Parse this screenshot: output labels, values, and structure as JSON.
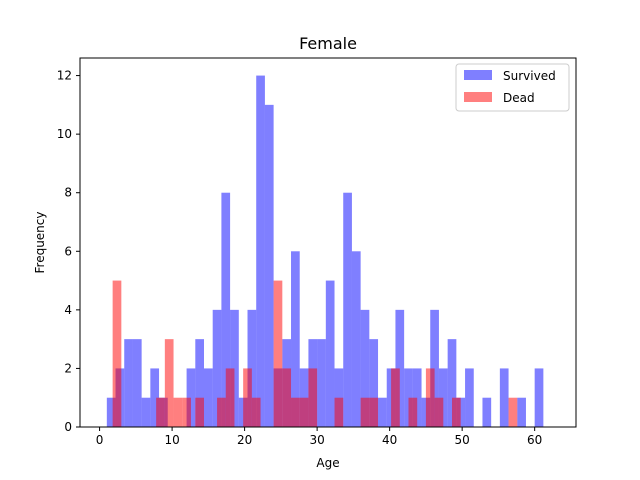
{
  "chart_data": {
    "type": "bar",
    "title": "Female",
    "xlabel": "Age",
    "ylabel": "Frequency",
    "xlim": [
      -2.7,
      65.7
    ],
    "ylim": [
      0,
      12.6
    ],
    "x_ticks": [
      0,
      10,
      20,
      30,
      40,
      50,
      60
    ],
    "y_ticks": [
      0,
      2,
      4,
      6,
      8,
      10,
      12
    ],
    "bin_width": 1.2,
    "legend_position": "top-right",
    "series": [
      {
        "name": "Survived",
        "color": "#0000ff",
        "bins": [
          {
            "x": 1.0,
            "value": 1
          },
          {
            "x": 2.2,
            "value": 2
          },
          {
            "x": 3.4,
            "value": 3
          },
          {
            "x": 4.6,
            "value": 3
          },
          {
            "x": 5.8,
            "value": 1
          },
          {
            "x": 7.0,
            "value": 2
          },
          {
            "x": 8.2,
            "value": 1
          },
          {
            "x": 12.0,
            "value": 2
          },
          {
            "x": 13.2,
            "value": 3
          },
          {
            "x": 14.4,
            "value": 2
          },
          {
            "x": 15.6,
            "value": 4
          },
          {
            "x": 16.8,
            "value": 8
          },
          {
            "x": 18.0,
            "value": 4
          },
          {
            "x": 19.2,
            "value": 1
          },
          {
            "x": 20.4,
            "value": 4
          },
          {
            "x": 21.6,
            "value": 12
          },
          {
            "x": 22.8,
            "value": 11
          },
          {
            "x": 24.0,
            "value": 2
          },
          {
            "x": 25.2,
            "value": 3
          },
          {
            "x": 26.4,
            "value": 6
          },
          {
            "x": 27.6,
            "value": 2
          },
          {
            "x": 28.8,
            "value": 3
          },
          {
            "x": 30.0,
            "value": 3
          },
          {
            "x": 31.2,
            "value": 5
          },
          {
            "x": 32.4,
            "value": 2
          },
          {
            "x": 33.6,
            "value": 8
          },
          {
            "x": 34.8,
            "value": 6
          },
          {
            "x": 36.0,
            "value": 4
          },
          {
            "x": 37.2,
            "value": 3
          },
          {
            "x": 38.4,
            "value": 1
          },
          {
            "x": 39.6,
            "value": 2
          },
          {
            "x": 40.8,
            "value": 4
          },
          {
            "x": 42.0,
            "value": 2
          },
          {
            "x": 43.2,
            "value": 2
          },
          {
            "x": 44.4,
            "value": 1
          },
          {
            "x": 45.6,
            "value": 4
          },
          {
            "x": 46.8,
            "value": 2
          },
          {
            "x": 48.0,
            "value": 3
          },
          {
            "x": 49.2,
            "value": 1
          },
          {
            "x": 50.4,
            "value": 2
          },
          {
            "x": 52.8,
            "value": 1
          },
          {
            "x": 55.2,
            "value": 2
          },
          {
            "x": 57.6,
            "value": 1
          },
          {
            "x": 60.0,
            "value": 2
          }
        ]
      },
      {
        "name": "Dead",
        "color": "#ff0000",
        "bins": [
          {
            "x": 1.8,
            "value": 5
          },
          {
            "x": 7.8,
            "value": 1
          },
          {
            "x": 9.0,
            "value": 3
          },
          {
            "x": 10.2,
            "value": 1
          },
          {
            "x": 11.4,
            "value": 1
          },
          {
            "x": 13.2,
            "value": 1
          },
          {
            "x": 16.2,
            "value": 1
          },
          {
            "x": 17.4,
            "value": 2
          },
          {
            "x": 19.8,
            "value": 2
          },
          {
            "x": 21.0,
            "value": 1
          },
          {
            "x": 24.0,
            "value": 5
          },
          {
            "x": 25.2,
            "value": 2
          },
          {
            "x": 26.4,
            "value": 1
          },
          {
            "x": 27.6,
            "value": 1
          },
          {
            "x": 28.8,
            "value": 2
          },
          {
            "x": 32.4,
            "value": 1
          },
          {
            "x": 36.0,
            "value": 1
          },
          {
            "x": 37.2,
            "value": 1
          },
          {
            "x": 40.2,
            "value": 2
          },
          {
            "x": 42.6,
            "value": 1
          },
          {
            "x": 45.0,
            "value": 2
          },
          {
            "x": 46.2,
            "value": 1
          },
          {
            "x": 48.6,
            "value": 1
          },
          {
            "x": 56.4,
            "value": 1
          }
        ]
      }
    ]
  }
}
